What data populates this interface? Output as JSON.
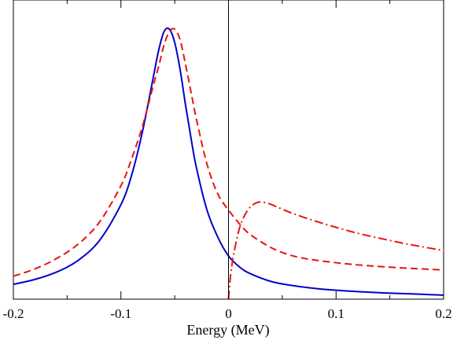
{
  "chart_data": {
    "type": "line",
    "title": "",
    "xlabel": "Energy (MeV)",
    "ylabel": "",
    "xlim": [
      -0.2,
      0.2
    ],
    "ylim": [
      0,
      1
    ],
    "x_tick_labels": [
      "-0.2",
      "-0.1",
      "0",
      "0.1",
      "0.2"
    ],
    "x_ticks": [
      -0.2,
      -0.1,
      0,
      0.1,
      0.2
    ],
    "grid": false,
    "legend": "none",
    "vertical_line_at": 0,
    "series": [
      {
        "style": "solid",
        "color": "#0000cc",
        "x": [
          -0.2,
          -0.18,
          -0.16,
          -0.14,
          -0.12,
          -0.1,
          -0.09,
          -0.08,
          -0.07,
          -0.065,
          -0.06,
          -0.055,
          -0.05,
          -0.045,
          -0.04,
          -0.035,
          -0.03,
          -0.02,
          -0.01,
          0.0,
          0.01,
          0.02,
          0.04,
          0.06,
          0.08,
          0.1,
          0.12,
          0.14,
          0.16,
          0.18,
          0.2
        ],
        "y": [
          0.055,
          0.073,
          0.1,
          0.143,
          0.217,
          0.35,
          0.46,
          0.62,
          0.82,
          0.92,
          0.99,
          1.0,
          0.95,
          0.85,
          0.72,
          0.6,
          0.49,
          0.33,
          0.23,
          0.16,
          0.12,
          0.095,
          0.065,
          0.05,
          0.04,
          0.033,
          0.028,
          0.024,
          0.021,
          0.018,
          0.015
        ]
      },
      {
        "style": "dashed",
        "color": "#e8150e",
        "x": [
          -0.2,
          -0.18,
          -0.16,
          -0.14,
          -0.12,
          -0.1,
          -0.09,
          -0.08,
          -0.07,
          -0.065,
          -0.06,
          -0.055,
          -0.05,
          -0.045,
          -0.04,
          -0.035,
          -0.03,
          -0.02,
          -0.01,
          0.0,
          0.01,
          0.02,
          0.04,
          0.06,
          0.08,
          0.1,
          0.12,
          0.14,
          0.16,
          0.18,
          0.2
        ],
        "y": [
          0.085,
          0.112,
          0.15,
          0.203,
          0.285,
          0.42,
          0.52,
          0.64,
          0.79,
          0.86,
          0.94,
          0.99,
          1.0,
          0.96,
          0.87,
          0.77,
          0.67,
          0.5,
          0.39,
          0.33,
          0.28,
          0.24,
          0.19,
          0.16,
          0.145,
          0.135,
          0.127,
          0.121,
          0.116,
          0.112,
          0.108
        ]
      },
      {
        "style": "dash-dot",
        "color": "#e8150e",
        "x": [
          0.0,
          0.002,
          0.005,
          0.01,
          0.015,
          0.02,
          0.025,
          0.03,
          0.035,
          0.04,
          0.05,
          0.06,
          0.08,
          0.1,
          0.12,
          0.14,
          0.16,
          0.18,
          0.2
        ],
        "y": [
          0.0,
          0.09,
          0.17,
          0.26,
          0.31,
          0.34,
          0.355,
          0.36,
          0.356,
          0.35,
          0.333,
          0.317,
          0.29,
          0.266,
          0.244,
          0.226,
          0.209,
          0.194,
          0.18
        ]
      }
    ]
  }
}
